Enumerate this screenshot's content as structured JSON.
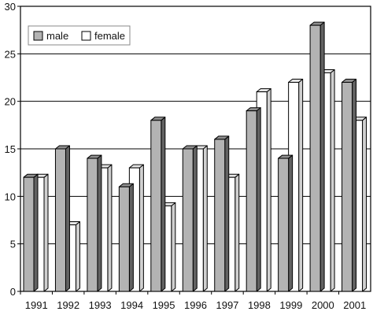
{
  "chart_data": {
    "type": "bar",
    "categories": [
      "1991",
      "1992",
      "1993",
      "1994",
      "1995",
      "1996",
      "1997",
      "1998",
      "1999",
      "2000",
      "2001"
    ],
    "series": [
      {
        "name": "male",
        "values": [
          12,
          15,
          14,
          11,
          18,
          15,
          16,
          19,
          14,
          28,
          22
        ],
        "color": "#b3b3b3"
      },
      {
        "name": "female",
        "values": [
          12,
          7,
          13,
          13,
          9,
          15,
          12,
          21,
          22,
          23,
          18
        ],
        "color": "#ffffff"
      }
    ],
    "ylim": [
      0,
      30
    ],
    "yticks": [
      "0",
      "5",
      "10",
      "15",
      "20",
      "25",
      "30"
    ],
    "grid": true,
    "legend_position": "top-left",
    "style": "3d-bars"
  }
}
